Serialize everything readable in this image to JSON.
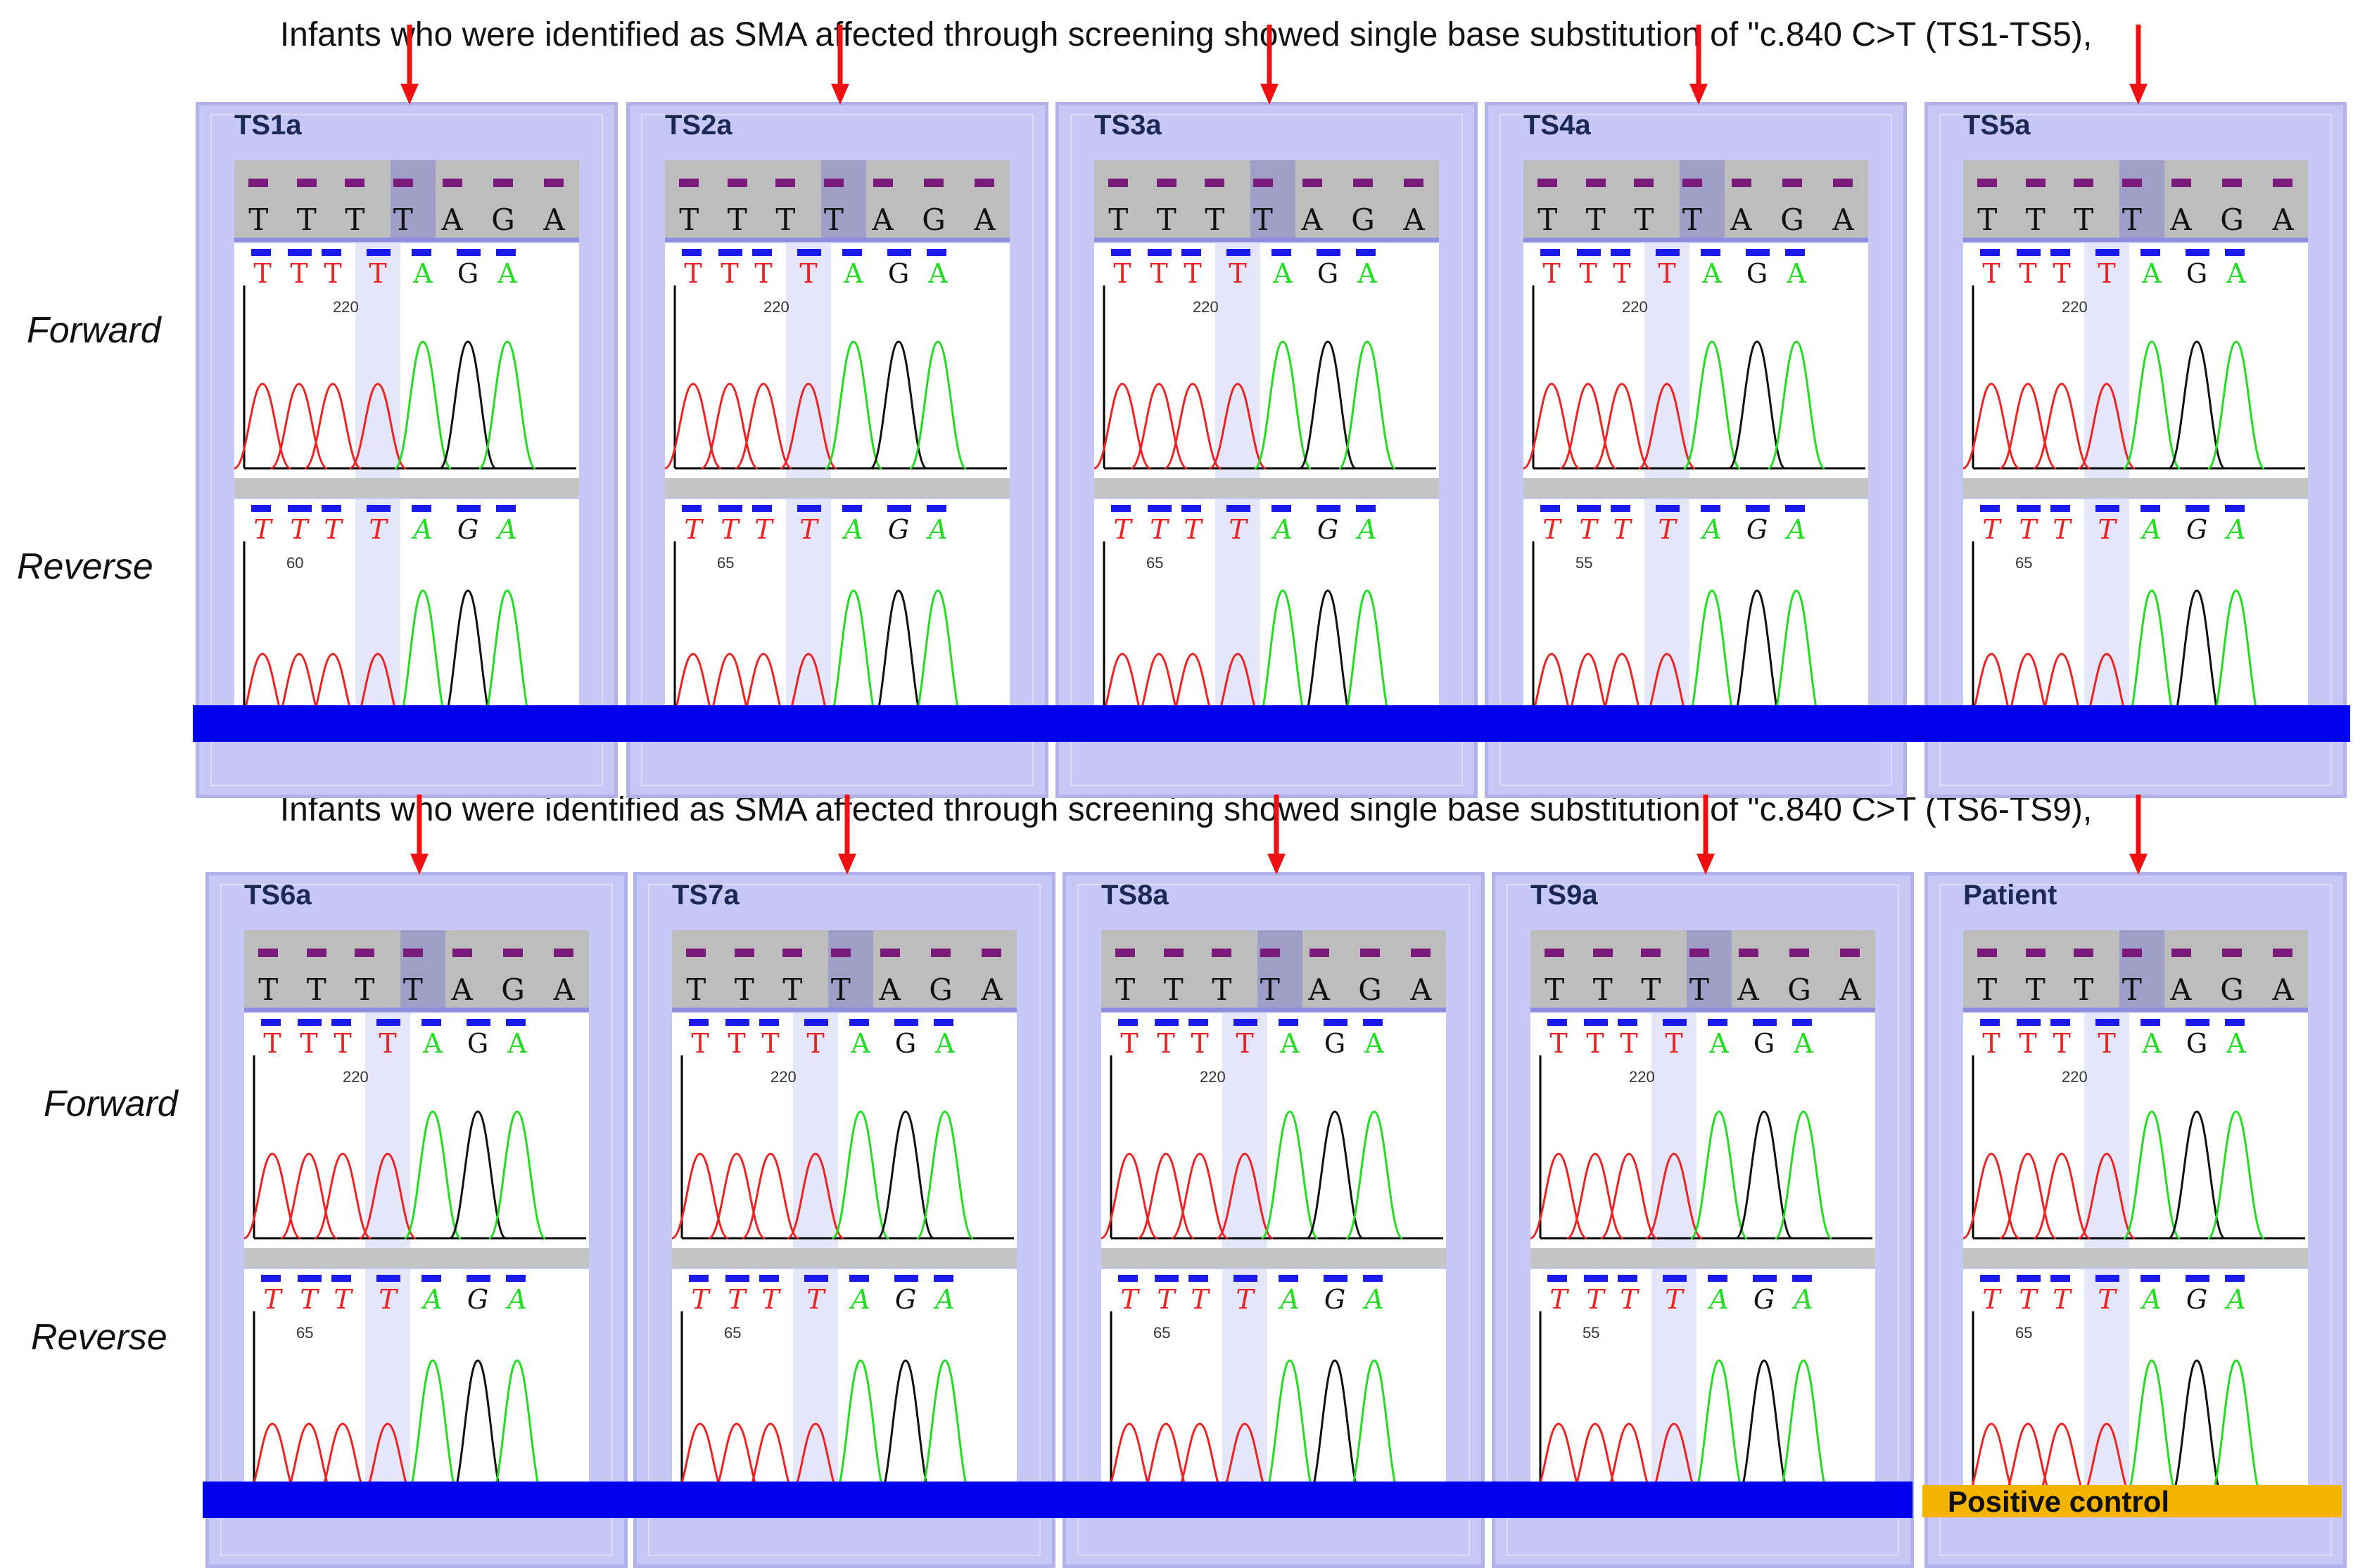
{
  "captions": {
    "top": "Infants who were identified as SMA affected through screening showed single base substitution of \"c.840 C>T (TS1-TS5),",
    "bottom": "Infants who were identified as SMA affected through screening showed single base substitution of \"c.840 C>T (TS6-TS9),"
  },
  "row_labels": {
    "forward": "Forward",
    "reverse": "Reverse"
  },
  "consensus": [
    "T",
    "T",
    "T",
    "T",
    "A",
    "G",
    "A"
  ],
  "panels_top": [
    {
      "title": "TS1a",
      "forward_pos": "220",
      "reverse_pos": "60"
    },
    {
      "title": "TS2a",
      "forward_pos": "220",
      "reverse_pos": "65"
    },
    {
      "title": "TS3a",
      "forward_pos": "220",
      "reverse_pos": "65"
    },
    {
      "title": "TS4a",
      "forward_pos": "220",
      "reverse_pos": "55"
    },
    {
      "title": "TS5a",
      "forward_pos": "220",
      "reverse_pos": "65"
    }
  ],
  "panels_bottom": [
    {
      "title": "TS6a",
      "forward_pos": "220",
      "reverse_pos": "65"
    },
    {
      "title": "TS7a",
      "forward_pos": "220",
      "reverse_pos": "65"
    },
    {
      "title": "TS8a",
      "forward_pos": "220",
      "reverse_pos": "65"
    },
    {
      "title": "TS9a",
      "forward_pos": "220",
      "reverse_pos": "55"
    },
    {
      "title": "Patient",
      "forward_pos": "220",
      "reverse_pos": "65"
    }
  ],
  "positive_control_label": "Positive control",
  "colors": {
    "base_T": "#ee2222",
    "base_A": "#22dd22",
    "base_G": "#111111",
    "arrow": "#ee1111",
    "blue_bar": "#0000ee",
    "orange_bar": "#f5b400"
  }
}
